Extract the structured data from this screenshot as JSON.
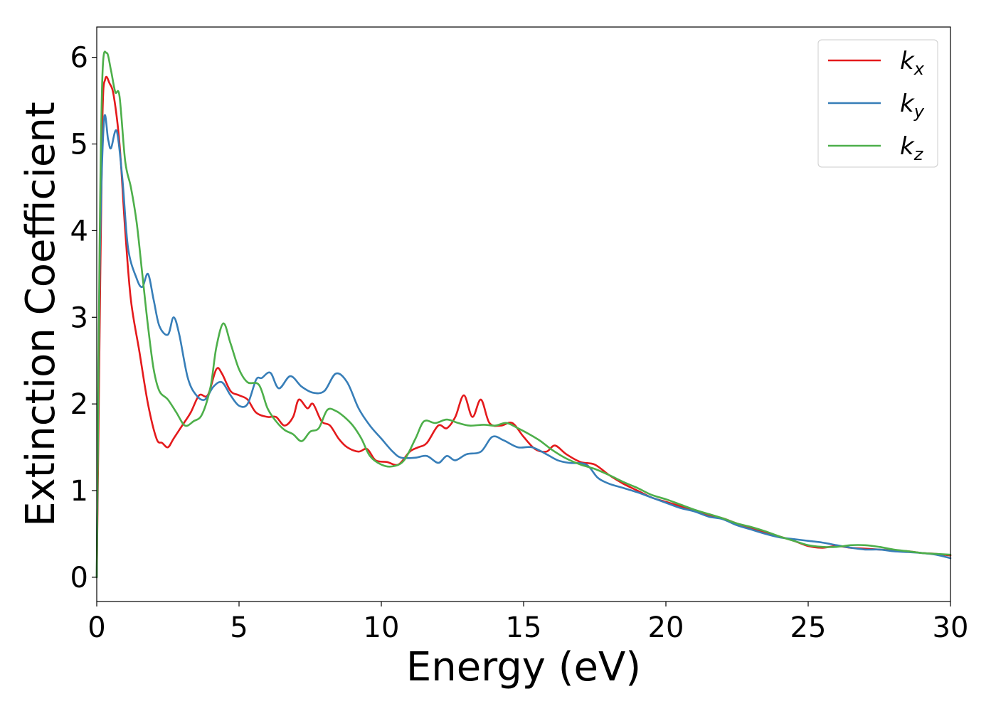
{
  "chart_data": {
    "type": "line",
    "xlabel": "Energy (eV)",
    "ylabel": "Extinction Coefficient",
    "xlim": [
      0,
      30
    ],
    "ylim": [
      -0.28,
      6.35
    ],
    "xticks": [
      "0",
      "5",
      "10",
      "15",
      "20",
      "25",
      "30"
    ],
    "yticks": [
      "0",
      "1",
      "2",
      "3",
      "4",
      "5",
      "6"
    ],
    "grid": false,
    "legend_position": "top-right",
    "series": [
      {
        "name": "k_x",
        "legend_base": "k",
        "legend_sub": "x",
        "color": "#e41a1c",
        "points": [
          [
            0,
            0
          ],
          [
            0.1,
            2.8
          ],
          [
            0.2,
            5.3
          ],
          [
            0.3,
            5.75
          ],
          [
            0.45,
            5.7
          ],
          [
            0.6,
            5.55
          ],
          [
            0.8,
            5.0
          ],
          [
            1.0,
            4.0
          ],
          [
            1.2,
            3.2
          ],
          [
            1.5,
            2.6
          ],
          [
            1.8,
            2.0
          ],
          [
            2.1,
            1.6
          ],
          [
            2.3,
            1.55
          ],
          [
            2.5,
            1.5
          ],
          [
            2.7,
            1.6
          ],
          [
            3.0,
            1.75
          ],
          [
            3.3,
            1.9
          ],
          [
            3.6,
            2.1
          ],
          [
            3.9,
            2.1
          ],
          [
            4.2,
            2.4
          ],
          [
            4.4,
            2.35
          ],
          [
            4.7,
            2.15
          ],
          [
            5.0,
            2.1
          ],
          [
            5.3,
            2.05
          ],
          [
            5.6,
            1.9
          ],
          [
            6.0,
            1.85
          ],
          [
            6.3,
            1.85
          ],
          [
            6.6,
            1.75
          ],
          [
            6.9,
            1.85
          ],
          [
            7.1,
            2.05
          ],
          [
            7.4,
            1.95
          ],
          [
            7.6,
            2.0
          ],
          [
            7.9,
            1.8
          ],
          [
            8.2,
            1.75
          ],
          [
            8.5,
            1.6
          ],
          [
            8.8,
            1.5
          ],
          [
            9.2,
            1.45
          ],
          [
            9.5,
            1.48
          ],
          [
            9.8,
            1.35
          ],
          [
            10.2,
            1.33
          ],
          [
            10.6,
            1.3
          ],
          [
            11.0,
            1.45
          ],
          [
            11.3,
            1.5
          ],
          [
            11.6,
            1.55
          ],
          [
            12.0,
            1.75
          ],
          [
            12.3,
            1.72
          ],
          [
            12.6,
            1.85
          ],
          [
            12.9,
            2.1
          ],
          [
            13.2,
            1.85
          ],
          [
            13.5,
            2.05
          ],
          [
            13.8,
            1.78
          ],
          [
            14.2,
            1.75
          ],
          [
            14.6,
            1.78
          ],
          [
            15.0,
            1.62
          ],
          [
            15.4,
            1.48
          ],
          [
            15.8,
            1.45
          ],
          [
            16.1,
            1.52
          ],
          [
            16.5,
            1.42
          ],
          [
            17.0,
            1.33
          ],
          [
            17.5,
            1.3
          ],
          [
            18.0,
            1.18
          ],
          [
            18.5,
            1.08
          ],
          [
            19.0,
            1.0
          ],
          [
            19.5,
            0.92
          ],
          [
            20.0,
            0.87
          ],
          [
            20.5,
            0.82
          ],
          [
            21.0,
            0.77
          ],
          [
            21.5,
            0.72
          ],
          [
            22.0,
            0.68
          ],
          [
            22.5,
            0.62
          ],
          [
            23.0,
            0.57
          ],
          [
            23.5,
            0.52
          ],
          [
            24.0,
            0.47
          ],
          [
            24.5,
            0.42
          ],
          [
            25.0,
            0.36
          ],
          [
            25.5,
            0.34
          ],
          [
            26.0,
            0.36
          ],
          [
            26.5,
            0.34
          ],
          [
            27.0,
            0.33
          ],
          [
            27.5,
            0.32
          ],
          [
            28.0,
            0.31
          ],
          [
            28.5,
            0.3
          ],
          [
            29.0,
            0.28
          ],
          [
            29.5,
            0.27
          ],
          [
            30.0,
            0.25
          ]
        ]
      },
      {
        "name": "k_y",
        "legend_base": "k",
        "legend_sub": "y",
        "color": "#377eb8",
        "points": [
          [
            0,
            0
          ],
          [
            0.1,
            3.5
          ],
          [
            0.25,
            5.25
          ],
          [
            0.4,
            5.05
          ],
          [
            0.5,
            4.95
          ],
          [
            0.7,
            5.15
          ],
          [
            0.9,
            4.6
          ],
          [
            1.1,
            3.8
          ],
          [
            1.4,
            3.45
          ],
          [
            1.6,
            3.35
          ],
          [
            1.8,
            3.5
          ],
          [
            2.0,
            3.2
          ],
          [
            2.2,
            2.9
          ],
          [
            2.5,
            2.8
          ],
          [
            2.7,
            3.0
          ],
          [
            2.9,
            2.8
          ],
          [
            3.2,
            2.3
          ],
          [
            3.5,
            2.1
          ],
          [
            3.8,
            2.05
          ],
          [
            4.1,
            2.2
          ],
          [
            4.4,
            2.25
          ],
          [
            4.7,
            2.1
          ],
          [
            5.0,
            1.98
          ],
          [
            5.3,
            2.0
          ],
          [
            5.6,
            2.28
          ],
          [
            5.8,
            2.3
          ],
          [
            6.1,
            2.36
          ],
          [
            6.4,
            2.18
          ],
          [
            6.8,
            2.32
          ],
          [
            7.2,
            2.2
          ],
          [
            7.6,
            2.13
          ],
          [
            8.0,
            2.15
          ],
          [
            8.4,
            2.35
          ],
          [
            8.8,
            2.25
          ],
          [
            9.2,
            1.95
          ],
          [
            9.6,
            1.75
          ],
          [
            10.0,
            1.6
          ],
          [
            10.4,
            1.45
          ],
          [
            10.7,
            1.38
          ],
          [
            11.2,
            1.38
          ],
          [
            11.6,
            1.4
          ],
          [
            12.0,
            1.32
          ],
          [
            12.3,
            1.4
          ],
          [
            12.6,
            1.35
          ],
          [
            13.0,
            1.42
          ],
          [
            13.5,
            1.45
          ],
          [
            13.9,
            1.62
          ],
          [
            14.3,
            1.58
          ],
          [
            14.8,
            1.5
          ],
          [
            15.3,
            1.5
          ],
          [
            15.8,
            1.42
          ],
          [
            16.2,
            1.35
          ],
          [
            16.6,
            1.32
          ],
          [
            17.2,
            1.3
          ],
          [
            17.6,
            1.15
          ],
          [
            18.0,
            1.08
          ],
          [
            18.5,
            1.03
          ],
          [
            19.0,
            0.98
          ],
          [
            19.5,
            0.92
          ],
          [
            20.0,
            0.86
          ],
          [
            20.5,
            0.8
          ],
          [
            21.0,
            0.76
          ],
          [
            21.5,
            0.7
          ],
          [
            22.0,
            0.67
          ],
          [
            22.5,
            0.6
          ],
          [
            23.0,
            0.55
          ],
          [
            23.5,
            0.5
          ],
          [
            24.0,
            0.46
          ],
          [
            24.5,
            0.44
          ],
          [
            25.0,
            0.42
          ],
          [
            25.5,
            0.4
          ],
          [
            26.0,
            0.37
          ],
          [
            26.5,
            0.34
          ],
          [
            27.0,
            0.32
          ],
          [
            27.5,
            0.32
          ],
          [
            28.0,
            0.3
          ],
          [
            28.5,
            0.29
          ],
          [
            29.0,
            0.28
          ],
          [
            29.5,
            0.26
          ],
          [
            30.0,
            0.22
          ]
        ]
      },
      {
        "name": "k_z",
        "legend_base": "k",
        "legend_sub": "z",
        "color": "#4daf4a",
        "points": [
          [
            0,
            0
          ],
          [
            0.1,
            3.8
          ],
          [
            0.2,
            5.8
          ],
          [
            0.35,
            6.05
          ],
          [
            0.5,
            5.85
          ],
          [
            0.65,
            5.6
          ],
          [
            0.8,
            5.55
          ],
          [
            1.0,
            4.8
          ],
          [
            1.2,
            4.5
          ],
          [
            1.4,
            4.1
          ],
          [
            1.6,
            3.5
          ],
          [
            1.8,
            2.9
          ],
          [
            2.0,
            2.4
          ],
          [
            2.2,
            2.15
          ],
          [
            2.5,
            2.05
          ],
          [
            2.8,
            1.9
          ],
          [
            3.1,
            1.75
          ],
          [
            3.4,
            1.8
          ],
          [
            3.7,
            1.88
          ],
          [
            4.0,
            2.2
          ],
          [
            4.2,
            2.65
          ],
          [
            4.45,
            2.93
          ],
          [
            4.7,
            2.7
          ],
          [
            5.0,
            2.4
          ],
          [
            5.3,
            2.25
          ],
          [
            5.7,
            2.22
          ],
          [
            6.0,
            1.95
          ],
          [
            6.3,
            1.8
          ],
          [
            6.6,
            1.7
          ],
          [
            6.9,
            1.65
          ],
          [
            7.2,
            1.57
          ],
          [
            7.5,
            1.68
          ],
          [
            7.8,
            1.72
          ],
          [
            8.1,
            1.93
          ],
          [
            8.4,
            1.92
          ],
          [
            8.7,
            1.85
          ],
          [
            9.0,
            1.75
          ],
          [
            9.3,
            1.6
          ],
          [
            9.6,
            1.4
          ],
          [
            10.0,
            1.3
          ],
          [
            10.4,
            1.28
          ],
          [
            10.8,
            1.35
          ],
          [
            11.2,
            1.6
          ],
          [
            11.5,
            1.8
          ],
          [
            11.9,
            1.78
          ],
          [
            12.3,
            1.82
          ],
          [
            12.7,
            1.78
          ],
          [
            13.1,
            1.75
          ],
          [
            13.6,
            1.76
          ],
          [
            14.0,
            1.75
          ],
          [
            14.4,
            1.78
          ],
          [
            14.8,
            1.72
          ],
          [
            15.2,
            1.65
          ],
          [
            15.6,
            1.57
          ],
          [
            16.0,
            1.47
          ],
          [
            16.5,
            1.37
          ],
          [
            17.0,
            1.3
          ],
          [
            17.5,
            1.25
          ],
          [
            18.0,
            1.18
          ],
          [
            18.5,
            1.1
          ],
          [
            19.0,
            1.03
          ],
          [
            19.5,
            0.95
          ],
          [
            20.0,
            0.9
          ],
          [
            20.5,
            0.84
          ],
          [
            21.0,
            0.78
          ],
          [
            21.5,
            0.73
          ],
          [
            22.0,
            0.68
          ],
          [
            22.5,
            0.62
          ],
          [
            23.0,
            0.58
          ],
          [
            23.5,
            0.53
          ],
          [
            24.0,
            0.47
          ],
          [
            24.5,
            0.42
          ],
          [
            25.0,
            0.37
          ],
          [
            25.5,
            0.35
          ],
          [
            26.0,
            0.35
          ],
          [
            26.5,
            0.37
          ],
          [
            27.0,
            0.37
          ],
          [
            27.5,
            0.35
          ],
          [
            28.0,
            0.32
          ],
          [
            28.5,
            0.3
          ],
          [
            29.0,
            0.28
          ],
          [
            29.5,
            0.27
          ],
          [
            30.0,
            0.26
          ]
        ]
      }
    ]
  }
}
